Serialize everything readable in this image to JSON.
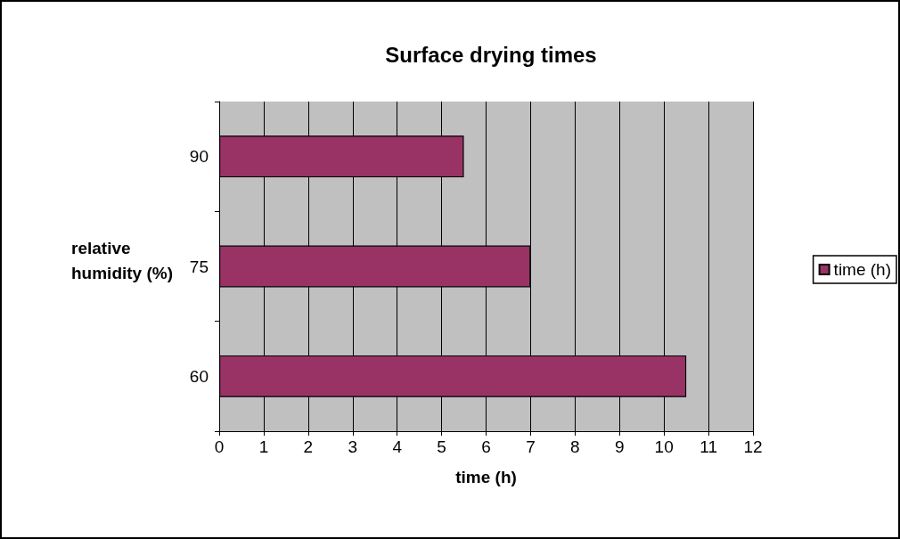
{
  "chart_data": {
    "type": "bar",
    "orientation": "horizontal",
    "title": "Surface drying times",
    "xlabel": "time (h)",
    "ylabel": "relative\nhumidity (%)",
    "categories": [
      "90",
      "75",
      "60"
    ],
    "series": [
      {
        "name": "time (h)",
        "color": "#993366",
        "values": [
          5.5,
          7,
          10.5
        ]
      }
    ],
    "xlim": [
      0,
      12
    ],
    "xticks": [
      0,
      1,
      2,
      3,
      4,
      5,
      6,
      7,
      8,
      9,
      10,
      11,
      12
    ],
    "grid": "x",
    "legend": "right"
  }
}
